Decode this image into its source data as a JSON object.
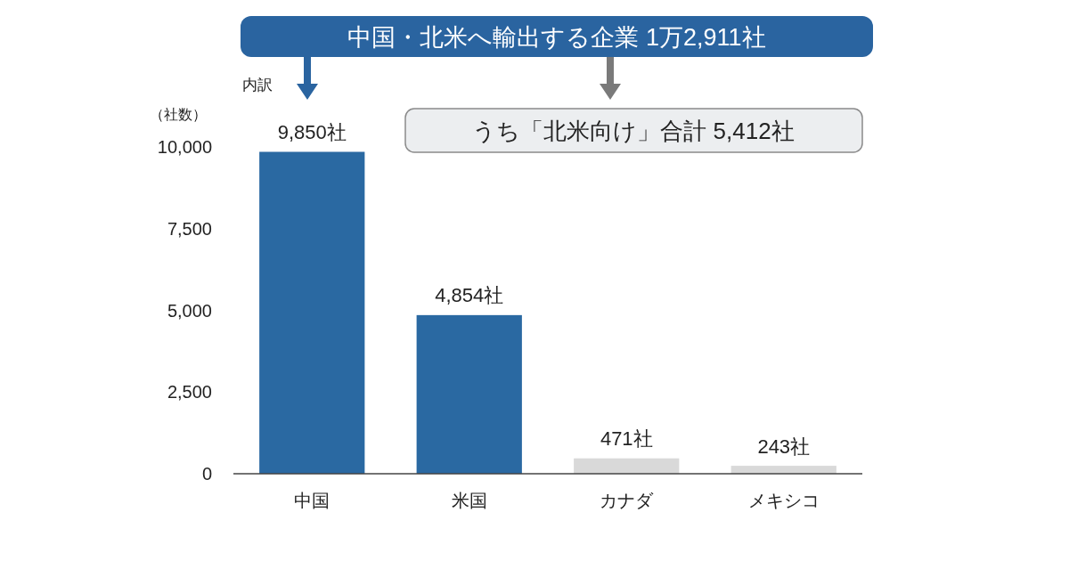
{
  "chart_data": {
    "type": "bar",
    "ylabel": "（社数）",
    "categories": [
      "中国",
      "米国",
      "カナダ",
      "メキシコ"
    ],
    "values": [
      9850,
      4854,
      471,
      243
    ],
    "colors": [
      "#2a69a2",
      "#2a69a2",
      "#d9d9d9",
      "#d9d9d9"
    ],
    "value_labels": [
      "9,850社",
      "4,854社",
      "471社",
      "243社"
    ],
    "ylim": [
      0,
      10000
    ],
    "yticks": [
      0,
      {
        "value": 2500,
        "label": "2,500"
      },
      {
        "value": 5000,
        "label": "5,000"
      },
      {
        "value": 7500,
        "label": "7,500"
      },
      {
        "value": 10000,
        "label": "10,000"
      }
    ],
    "annotations": [
      "中国・北米へ輸出する企業 1万2,911社",
      "内訳",
      "うち「北米向け」合計 5,412社"
    ]
  }
}
